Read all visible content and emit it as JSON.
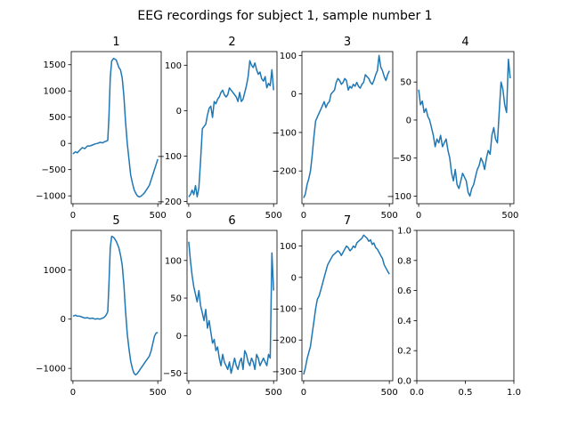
{
  "figure": {
    "suptitle": "EEG recordings for subject 1, sample number 1"
  },
  "colors": {
    "line": "#1f77b4",
    "axes": "#000000",
    "background": "#ffffff"
  },
  "chart_data": [
    {
      "type": "line",
      "title": "1",
      "xlim": [
        -10,
        520
      ],
      "ylim": [
        -1150,
        1750
      ],
      "xticks": [
        0,
        500
      ],
      "yticks": [
        -1000,
        -500,
        0,
        500,
        1000,
        1500
      ],
      "series": [
        {
          "x": [
            0,
            15,
            25,
            40,
            55,
            70,
            85,
            100,
            115,
            130,
            145,
            160,
            175,
            185,
            195,
            205,
            212,
            220,
            228,
            240,
            255,
            270,
            280,
            290,
            300,
            310,
            320,
            330,
            340,
            350,
            360,
            370,
            380,
            390,
            400,
            410,
            420,
            430,
            440,
            450,
            460,
            470,
            480,
            490,
            500
          ],
          "y": [
            -200,
            -160,
            -180,
            -130,
            -80,
            -100,
            -50,
            -50,
            -30,
            -10,
            0,
            20,
            10,
            30,
            40,
            60,
            500,
            1250,
            1570,
            1620,
            1590,
            1450,
            1400,
            1250,
            900,
            400,
            0,
            -300,
            -600,
            -750,
            -880,
            -950,
            -1000,
            -1020,
            -1010,
            -980,
            -950,
            -900,
            -850,
            -800,
            -700,
            -600,
            -500,
            -400,
            -300
          ]
        }
      ]
    },
    {
      "type": "line",
      "title": "2",
      "xlim": [
        -10,
        520
      ],
      "ylim": [
        -205,
        130
      ],
      "xticks": [
        0,
        500
      ],
      "yticks": [
        -200,
        -100,
        0,
        100
      ],
      "series": [
        {
          "x": [
            0,
            10,
            20,
            30,
            40,
            50,
            60,
            70,
            80,
            90,
            100,
            110,
            120,
            130,
            140,
            150,
            160,
            170,
            180,
            190,
            200,
            210,
            220,
            230,
            240,
            250,
            260,
            270,
            280,
            290,
            300,
            310,
            320,
            330,
            340,
            350,
            360,
            370,
            380,
            390,
            400,
            410,
            420,
            430,
            440,
            450,
            460,
            470,
            480,
            490,
            500
          ],
          "y": [
            -190,
            -185,
            -175,
            -185,
            -165,
            -190,
            -170,
            -110,
            -40,
            -35,
            -30,
            -10,
            5,
            10,
            -15,
            20,
            15,
            25,
            30,
            40,
            45,
            35,
            30,
            35,
            50,
            45,
            40,
            35,
            30,
            20,
            40,
            20,
            25,
            40,
            55,
            75,
            110,
            100,
            95,
            105,
            90,
            80,
            85,
            70,
            65,
            75,
            50,
            60,
            55,
            90,
            45
          ]
        }
      ]
    },
    {
      "type": "line",
      "title": "3",
      "xlim": [
        -10,
        520
      ],
      "ylim": [
        -285,
        110
      ],
      "xticks": [
        0,
        500
      ],
      "yticks": [
        -200,
        -100,
        0,
        100
      ],
      "series": [
        {
          "x": [
            0,
            10,
            20,
            30,
            40,
            50,
            60,
            70,
            80,
            90,
            100,
            110,
            120,
            130,
            140,
            150,
            160,
            170,
            180,
            190,
            200,
            210,
            220,
            230,
            240,
            250,
            260,
            270,
            280,
            290,
            300,
            310,
            320,
            330,
            340,
            350,
            360,
            370,
            380,
            390,
            400,
            410,
            420,
            430,
            440,
            450,
            460,
            470,
            480,
            490,
            500
          ],
          "y": [
            -270,
            -260,
            -235,
            -220,
            -200,
            -160,
            -110,
            -70,
            -60,
            -50,
            -40,
            -30,
            -20,
            -35,
            -25,
            -20,
            0,
            5,
            10,
            30,
            40,
            35,
            25,
            30,
            40,
            35,
            10,
            20,
            15,
            25,
            20,
            30,
            20,
            15,
            25,
            30,
            50,
            45,
            40,
            30,
            25,
            35,
            50,
            60,
            100,
            70,
            60,
            45,
            35,
            50,
            60
          ]
        }
      ]
    },
    {
      "type": "line",
      "title": "4",
      "xlim": [
        -10,
        520
      ],
      "ylim": [
        -110,
        90
      ],
      "xticks": [
        0,
        500
      ],
      "yticks": [
        -100,
        -50,
        0,
        50
      ],
      "series": [
        {
          "x": [
            0,
            10,
            20,
            30,
            40,
            50,
            60,
            70,
            80,
            90,
            100,
            110,
            120,
            130,
            140,
            150,
            160,
            170,
            180,
            190,
            200,
            210,
            220,
            230,
            240,
            250,
            260,
            270,
            280,
            290,
            300,
            310,
            320,
            330,
            340,
            350,
            360,
            370,
            380,
            390,
            400,
            410,
            420,
            430,
            440,
            450,
            460,
            470,
            480,
            490,
            500
          ],
          "y": [
            40,
            20,
            25,
            10,
            15,
            5,
            0,
            -10,
            -20,
            -35,
            -25,
            -30,
            -20,
            -35,
            -30,
            -25,
            -40,
            -50,
            -70,
            -80,
            -65,
            -85,
            -90,
            -80,
            -70,
            -75,
            -80,
            -95,
            -100,
            -90,
            -85,
            -75,
            -65,
            -60,
            -50,
            -55,
            -65,
            -50,
            -40,
            -45,
            -20,
            -10,
            -25,
            -30,
            10,
            50,
            40,
            20,
            10,
            80,
            55
          ]
        }
      ]
    },
    {
      "type": "line",
      "title": "5",
      "xlim": [
        -10,
        520
      ],
      "ylim": [
        -1250,
        1800
      ],
      "xticks": [
        0,
        500
      ],
      "yticks": [
        -1000,
        0,
        1000
      ],
      "series": [
        {
          "x": [
            0,
            15,
            25,
            40,
            55,
            70,
            85,
            100,
            115,
            130,
            145,
            160,
            175,
            185,
            195,
            205,
            212,
            220,
            228,
            240,
            255,
            270,
            280,
            290,
            300,
            310,
            320,
            330,
            340,
            350,
            360,
            370,
            380,
            390,
            400,
            410,
            420,
            430,
            440,
            450,
            460,
            470,
            480,
            490,
            500
          ],
          "y": [
            60,
            80,
            60,
            60,
            40,
            20,
            30,
            10,
            20,
            0,
            10,
            0,
            20,
            40,
            80,
            150,
            700,
            1450,
            1680,
            1660,
            1580,
            1450,
            1300,
            1100,
            700,
            150,
            -300,
            -600,
            -850,
            -1000,
            -1100,
            -1130,
            -1100,
            -1050,
            -1000,
            -950,
            -900,
            -850,
            -800,
            -750,
            -650,
            -500,
            -350,
            -280,
            -270
          ]
        }
      ]
    },
    {
      "type": "line",
      "title": "6",
      "xlim": [
        -10,
        520
      ],
      "ylim": [
        -60,
        140
      ],
      "xticks": [
        0,
        500
      ],
      "yticks": [
        -50,
        0,
        50,
        100
      ],
      "series": [
        {
          "x": [
            0,
            10,
            20,
            30,
            40,
            50,
            60,
            70,
            80,
            90,
            100,
            110,
            120,
            130,
            140,
            150,
            160,
            170,
            180,
            190,
            200,
            210,
            220,
            230,
            240,
            250,
            260,
            270,
            280,
            290,
            300,
            310,
            320,
            330,
            340,
            350,
            360,
            370,
            380,
            390,
            400,
            410,
            420,
            430,
            440,
            450,
            460,
            470,
            480,
            490,
            500
          ],
          "y": [
            125,
            100,
            80,
            65,
            55,
            45,
            60,
            40,
            30,
            20,
            35,
            10,
            20,
            5,
            -10,
            -5,
            -20,
            -15,
            -30,
            -40,
            -25,
            -35,
            -40,
            -45,
            -35,
            -50,
            -40,
            -30,
            -40,
            -45,
            -35,
            -30,
            -45,
            -20,
            -25,
            -35,
            -40,
            -30,
            -35,
            -45,
            -25,
            -30,
            -40,
            -35,
            -30,
            -35,
            -40,
            -25,
            -30,
            110,
            60
          ]
        }
      ]
    },
    {
      "type": "line",
      "title": "7",
      "xlim": [
        -10,
        520
      ],
      "ylim": [
        -330,
        150
      ],
      "xticks": [
        0,
        500
      ],
      "yticks": [
        -300,
        -200,
        -100,
        0,
        100
      ],
      "series": [
        {
          "x": [
            0,
            10,
            20,
            30,
            40,
            50,
            60,
            70,
            80,
            90,
            100,
            110,
            120,
            130,
            140,
            150,
            160,
            170,
            180,
            190,
            200,
            210,
            220,
            230,
            240,
            250,
            260,
            270,
            280,
            290,
            300,
            310,
            320,
            330,
            340,
            350,
            360,
            370,
            380,
            390,
            400,
            410,
            420,
            430,
            440,
            450,
            460,
            470,
            480,
            490,
            500
          ],
          "y": [
            -310,
            -290,
            -260,
            -240,
            -220,
            -180,
            -140,
            -100,
            -70,
            -60,
            -40,
            -20,
            0,
            20,
            40,
            50,
            60,
            70,
            75,
            80,
            85,
            80,
            70,
            80,
            90,
            100,
            95,
            85,
            90,
            100,
            95,
            110,
            115,
            120,
            125,
            135,
            130,
            125,
            115,
            120,
            105,
            110,
            95,
            90,
            80,
            70,
            60,
            40,
            30,
            20,
            10
          ]
        }
      ]
    },
    {
      "type": "line",
      "title": "",
      "xlim": [
        0,
        1
      ],
      "ylim": [
        0,
        1
      ],
      "xticks": [
        0.0,
        0.5,
        1.0
      ],
      "yticks": [
        0.0,
        0.2,
        0.4,
        0.6,
        0.8,
        1.0
      ],
      "xtick_labels": [
        "0.0",
        "0.5",
        "1.0"
      ],
      "ytick_labels": [
        "0.0",
        "0.2",
        "0.4",
        "0.6",
        "0.8",
        "1.0"
      ],
      "series": []
    }
  ]
}
